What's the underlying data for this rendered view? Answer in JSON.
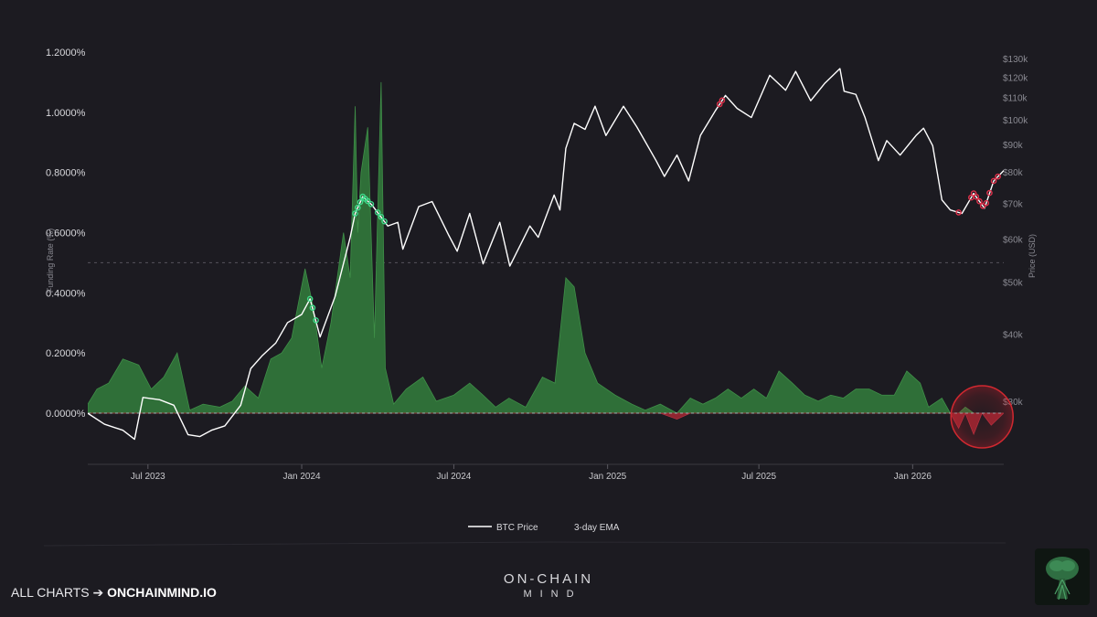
{
  "chart_data": {
    "type": "line",
    "title": "",
    "y_left_label": "Funding Rate (%)",
    "y_right_label": "Price (USD)",
    "y_left_ticks": [
      "1.2000%",
      "1.0000%",
      "0.8000%",
      "0.6000%",
      "0.4000%",
      "0.2000%",
      "0.0000%"
    ],
    "y_left_range": [
      -0.18,
      1.25
    ],
    "y_right_ticks": [
      "$130k",
      "$120k",
      "$110k",
      "$100k",
      "$90k",
      "$80k",
      "$70k",
      "$60k",
      "$50k",
      "$40k",
      "$30k"
    ],
    "y_right_values": [
      130000,
      120000,
      110000,
      100000,
      90000,
      80000,
      70000,
      60000,
      50000,
      40000,
      30000
    ],
    "y_right_scale": "log",
    "x_ticks": [
      "Jul 2023",
      "Jan 2024",
      "Jul 2024",
      "Jan 2025",
      "Jul 2025",
      "Jan 2026"
    ],
    "x_tick_dates": [
      "2023-07-01",
      "2024-01-01",
      "2024-07-01",
      "2025-01-01",
      "2025-07-01",
      "2026-01-01"
    ],
    "x_range": [
      "2023-04-20",
      "2026-04-20"
    ],
    "grid": false,
    "legend_position": "bottom-center",
    "series": [
      {
        "name": "BTC Price",
        "axis": "right",
        "color": "#ffffff",
        "x": [
          "2023-04-20",
          "2023-05-10",
          "2023-06-01",
          "2023-06-15",
          "2023-06-25",
          "2023-07-15",
          "2023-08-01",
          "2023-08-18",
          "2023-09-01",
          "2023-09-15",
          "2023-10-01",
          "2023-10-20",
          "2023-11-01",
          "2023-11-15",
          "2023-12-01",
          "2023-12-15",
          "2024-01-01",
          "2024-01-11",
          "2024-01-23",
          "2024-02-10",
          "2024-02-28",
          "2024-03-05",
          "2024-03-14",
          "2024-03-25",
          "2024-04-13",
          "2024-04-25",
          "2024-05-01",
          "2024-05-20",
          "2024-06-05",
          "2024-06-25",
          "2024-07-05",
          "2024-07-20",
          "2024-08-05",
          "2024-08-25",
          "2024-09-06",
          "2024-09-30",
          "2024-10-10",
          "2024-10-29",
          "2024-11-05",
          "2024-11-12",
          "2024-11-22",
          "2024-12-05",
          "2024-12-17",
          "2024-12-30",
          "2025-01-20",
          "2025-02-05",
          "2025-02-28",
          "2025-03-10",
          "2025-03-25",
          "2025-04-08",
          "2025-04-22",
          "2025-05-10",
          "2025-05-22",
          "2025-06-05",
          "2025-06-22",
          "2025-07-14",
          "2025-08-02",
          "2025-08-14",
          "2025-09-01",
          "2025-09-18",
          "2025-10-06",
          "2025-10-11",
          "2025-10-25",
          "2025-11-05",
          "2025-11-21",
          "2025-12-01",
          "2025-12-17",
          "2026-01-05",
          "2026-01-14",
          "2026-01-25",
          "2026-02-05",
          "2026-02-15",
          "2026-03-01",
          "2026-03-15",
          "2026-03-28",
          "2026-04-08",
          "2026-04-20"
        ],
        "values": [
          28500,
          27200,
          26500,
          25500,
          30500,
          30200,
          29500,
          26000,
          25800,
          26500,
          27000,
          29500,
          34500,
          36500,
          38500,
          42000,
          43500,
          46500,
          39500,
          47000,
          60500,
          67000,
          72000,
          69500,
          63500,
          64500,
          57500,
          69000,
          70500,
          61000,
          57000,
          67000,
          54000,
          64500,
          53500,
          63500,
          60500,
          72500,
          68000,
          88500,
          98500,
          96000,
          106000,
          93500,
          106000,
          97000,
          84000,
          78500,
          86000,
          77000,
          93500,
          104000,
          111000,
          105000,
          101000,
          121000,
          113500,
          123000,
          108500,
          117000,
          124500,
          113000,
          111500,
          101000,
          84000,
          91500,
          86000,
          93500,
          96500,
          89500,
          71000,
          68000,
          67000,
          73000,
          68500,
          77000,
          80500
        ]
      },
      {
        "name": "3-day EMA",
        "axis": "left",
        "color": "#3f8f48",
        "x": [
          "2023-04-20",
          "2023-05-01",
          "2023-05-15",
          "2023-06-01",
          "2023-06-20",
          "2023-07-05",
          "2023-07-20",
          "2023-08-05",
          "2023-08-20",
          "2023-09-05",
          "2023-09-25",
          "2023-10-10",
          "2023-10-25",
          "2023-11-10",
          "2023-11-25",
          "2023-12-08",
          "2023-12-20",
          "2024-01-05",
          "2024-01-15",
          "2024-01-25",
          "2024-02-05",
          "2024-02-20",
          "2024-02-28",
          "2024-03-05",
          "2024-03-08",
          "2024-03-12",
          "2024-03-20",
          "2024-03-28",
          "2024-04-05",
          "2024-04-10",
          "2024-04-20",
          "2024-05-05",
          "2024-05-25",
          "2024-06-10",
          "2024-07-01",
          "2024-07-20",
          "2024-08-05",
          "2024-08-20",
          "2024-09-05",
          "2024-09-25",
          "2024-10-15",
          "2024-10-30",
          "2024-11-12",
          "2024-11-22",
          "2024-12-05",
          "2024-12-20",
          "2025-01-10",
          "2025-01-30",
          "2025-02-15",
          "2025-03-05",
          "2025-03-25",
          "2025-04-10",
          "2025-04-25",
          "2025-05-10",
          "2025-05-25",
          "2025-06-10",
          "2025-06-25",
          "2025-07-10",
          "2025-07-25",
          "2025-08-10",
          "2025-08-25",
          "2025-09-10",
          "2025-09-25",
          "2025-10-10",
          "2025-10-25",
          "2025-11-10",
          "2025-11-25",
          "2025-12-10",
          "2025-12-25",
          "2026-01-10",
          "2026-01-20",
          "2026-02-05",
          "2026-02-15",
          "2026-02-25",
          "2026-03-05",
          "2026-03-15",
          "2026-03-25",
          "2026-04-05",
          "2026-04-20"
        ],
        "values": [
          0.03,
          0.08,
          0.1,
          0.18,
          0.16,
          0.08,
          0.12,
          0.2,
          0.01,
          0.03,
          0.02,
          0.04,
          0.09,
          0.05,
          0.18,
          0.2,
          0.25,
          0.48,
          0.35,
          0.15,
          0.3,
          0.6,
          0.45,
          1.02,
          0.6,
          0.8,
          0.95,
          0.25,
          1.1,
          0.15,
          0.03,
          0.08,
          0.12,
          0.04,
          0.06,
          0.1,
          0.06,
          0.02,
          0.05,
          0.02,
          0.12,
          0.1,
          0.45,
          0.42,
          0.2,
          0.1,
          0.06,
          0.03,
          0.01,
          0.03,
          -0.02,
          0.05,
          0.03,
          0.05,
          0.08,
          0.05,
          0.08,
          0.05,
          0.14,
          0.1,
          0.06,
          0.04,
          0.06,
          0.05,
          0.08,
          0.08,
          0.06,
          0.06,
          0.14,
          0.1,
          0.02,
          0.05,
          0.0,
          -0.05,
          0.02,
          -0.07,
          0.0,
          -0.04,
          0.0
        ]
      }
    ],
    "markers": [
      {
        "series": "BTC Price",
        "color": "#3ed98a",
        "dates": [
          "2024-01-11",
          "2024-01-14",
          "2024-01-18",
          "2024-03-05",
          "2024-03-08",
          "2024-03-11",
          "2024-03-14",
          "2024-03-17",
          "2024-03-20",
          "2024-03-24",
          "2024-04-01",
          "2024-04-05",
          "2024-04-09"
        ]
      },
      {
        "series": "BTC Price",
        "color": "#e0304a",
        "dates": [
          "2025-05-15",
          "2025-05-18",
          "2026-02-25",
          "2026-03-12",
          "2026-03-15",
          "2026-03-18",
          "2026-03-22",
          "2026-03-26",
          "2026-03-30",
          "2026-04-03",
          "2026-04-08",
          "2026-04-13"
        ]
      }
    ],
    "highlight": {
      "date": "2026-03-25",
      "value": 0.0,
      "color": "#c8202a"
    },
    "reference_line_value": 0.5
  },
  "footer": {
    "left_prefix": "ALL CHARTS ➔ ",
    "left_link": "ONCHAINMIND.IO",
    "brand_line1": "ON-CHAIN",
    "brand_line2": "MIND"
  },
  "icons": {
    "logo": "brain-logo-icon"
  }
}
